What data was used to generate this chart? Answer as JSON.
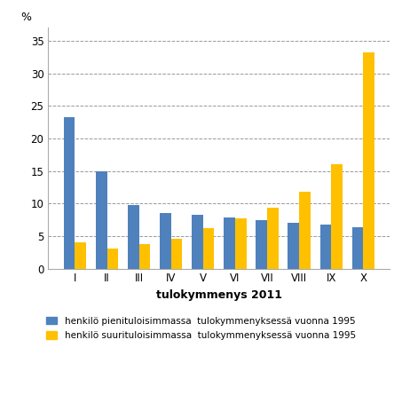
{
  "categories": [
    "I",
    "II",
    "III",
    "IV",
    "V",
    "VI",
    "VII",
    "VIII",
    "IX",
    "X"
  ],
  "blue_values": [
    23.3,
    14.9,
    9.8,
    8.5,
    8.2,
    7.9,
    7.4,
    7.1,
    6.8,
    6.3
  ],
  "orange_values": [
    4.0,
    3.1,
    3.8,
    4.6,
    6.2,
    7.7,
    9.4,
    11.8,
    16.0,
    33.2
  ],
  "blue_color": "#4f81bd",
  "orange_color": "#ffc000",
  "ylabel": "%",
  "xlabel": "tulokymmenys 2011",
  "ylim": [
    0,
    37
  ],
  "yticks": [
    0,
    5,
    10,
    15,
    20,
    25,
    30,
    35
  ],
  "grid_color": "#999999",
  "legend_blue": "henkilö pienituloisimmassa  tulokymmenyksessä vuonna 1995",
  "legend_orange": "henkilö suurituloisimmassa  tulokymmenyksessä vuonna 1995",
  "background_color": "#ffffff",
  "bar_width": 0.35
}
